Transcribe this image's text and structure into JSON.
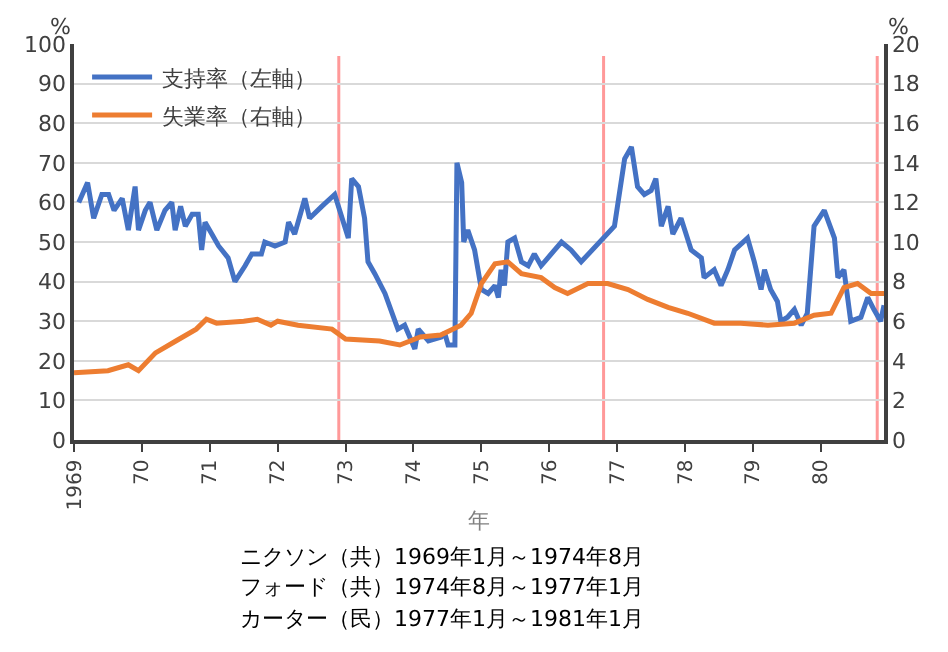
{
  "chart_data": {
    "type": "line",
    "xlabel": "年",
    "ylabel": "%",
    "y2label": "%",
    "x": [
      1969.07,
      1969.2,
      1969.29,
      1969.41,
      1969.51,
      1969.59,
      1969.71,
      1969.8,
      1969.9,
      1969.95,
      1970.05,
      1970.12,
      1970.22,
      1970.34,
      1970.44,
      1970.49,
      1970.57,
      1970.64,
      1970.74,
      1970.83,
      1970.88,
      1970.93,
      1971.03,
      1971.13,
      1971.27,
      1971.37,
      1971.52,
      1971.62,
      1971.76,
      1971.81,
      1971.96,
      1972.11,
      1972.16,
      1972.25,
      1972.4,
      1972.47,
      1972.65,
      1972.84,
      1973.04,
      1973.09,
      1973.19,
      1973.28,
      1973.33,
      1973.43,
      1973.58,
      1973.77,
      1973.87,
      1973.97,
      1974.02,
      1974.07,
      1974.22,
      1974.41,
      1974.46,
      1974.51,
      1974.61,
      1974.64,
      1974.71,
      1974.74,
      1974.8,
      1974.9,
      1975.0,
      1975.1,
      1975.2,
      1975.25,
      1975.29,
      1975.34,
      1975.39,
      1975.49,
      1975.59,
      1975.69,
      1975.78,
      1975.88,
      1975.98,
      1976.08,
      1976.18,
      1976.32,
      1976.47,
      1976.96,
      1977.11,
      1977.21,
      1977.3,
      1977.4,
      1977.5,
      1977.57,
      1977.65,
      1977.75,
      1977.82,
      1977.94,
      1978.09,
      1978.24,
      1978.28,
      1978.43,
      1978.53,
      1978.63,
      1978.73,
      1978.92,
      1979.02,
      1979.12,
      1979.17,
      1979.26,
      1979.36,
      1979.41,
      1979.51,
      1979.61,
      1979.71,
      1979.8,
      1979.9,
      1980.05,
      1980.2,
      1980.25,
      1980.34,
      1980.44,
      1980.59,
      1980.69,
      1980.78,
      1980.88,
      1980.93
    ],
    "series": [
      {
        "name": "支持率（左軸）",
        "color": "#4472c4",
        "values": [
          60,
          65,
          56,
          62,
          62,
          58,
          61,
          53,
          64,
          53,
          58,
          60,
          53,
          58,
          60,
          53,
          59,
          54,
          57,
          57,
          48,
          55,
          52,
          49,
          46,
          40,
          44,
          47,
          47,
          50,
          49,
          50,
          55,
          52,
          61,
          56,
          59,
          62,
          51,
          66,
          64,
          56,
          45,
          42,
          37,
          28,
          29,
          25,
          23,
          28,
          25,
          26,
          27,
          24,
          24,
          70,
          65,
          50,
          53,
          48,
          38,
          37,
          39,
          36,
          43,
          39,
          50,
          51,
          45,
          44,
          47,
          44,
          46,
          48,
          50,
          48,
          45,
          54,
          71,
          74,
          64,
          62,
          63,
          66,
          54,
          59,
          52,
          56,
          48,
          46,
          41,
          43,
          39,
          43,
          48,
          51,
          45,
          38,
          43,
          38,
          35,
          30,
          31,
          33,
          29,
          32,
          54,
          58,
          51,
          41,
          43,
          30,
          31,
          36,
          33,
          30,
          34
        ]
      },
      {
        "name": "失業率（右軸）",
        "color": "#ed7d31",
        "axis": "y2",
        "x": [
          1969.0,
          1969.5,
          1969.8,
          1969.95,
          1970.2,
          1970.5,
          1970.8,
          1970.95,
          1971.1,
          1971.5,
          1971.7,
          1971.9,
          1972.0,
          1972.3,
          1972.8,
          1973.0,
          1973.5,
          1973.8,
          1974.1,
          1974.4,
          1974.7,
          1974.85,
          1975.0,
          1975.2,
          1975.39,
          1975.59,
          1975.88,
          1976.08,
          1976.27,
          1976.57,
          1976.86,
          1977.16,
          1977.45,
          1977.75,
          1978.04,
          1978.43,
          1978.82,
          1979.22,
          1979.61,
          1979.9,
          1980.15,
          1980.34,
          1980.54,
          1980.74,
          1980.93
        ],
        "values": [
          3.4,
          3.5,
          3.8,
          3.5,
          4.4,
          5.0,
          5.6,
          6.1,
          5.9,
          6.0,
          6.1,
          5.8,
          6.0,
          5.8,
          5.6,
          5.1,
          5.0,
          4.8,
          5.2,
          5.3,
          5.8,
          6.4,
          7.9,
          8.9,
          9.0,
          8.4,
          8.2,
          7.7,
          7.4,
          7.9,
          7.9,
          7.6,
          7.1,
          6.7,
          6.4,
          5.9,
          5.9,
          5.8,
          5.9,
          6.3,
          6.4,
          7.7,
          7.9,
          7.4,
          7.4
        ]
      }
    ],
    "xlim": [
      1969,
      1980.93
    ],
    "xticks": [
      {
        "value": 1969,
        "label": "1969"
      },
      {
        "value": 1970,
        "label": "70"
      },
      {
        "value": 1971,
        "label": "71"
      },
      {
        "value": 1972,
        "label": "72"
      },
      {
        "value": 1973,
        "label": "73"
      },
      {
        "value": 1974,
        "label": "74"
      },
      {
        "value": 1975,
        "label": "75"
      },
      {
        "value": 1976,
        "label": "76"
      },
      {
        "value": 1977,
        "label": "77"
      },
      {
        "value": 1978,
        "label": "78"
      },
      {
        "value": 1979,
        "label": "79"
      },
      {
        "value": 1980,
        "label": "80"
      }
    ],
    "ylim": [
      0,
      100
    ],
    "yticks": [
      0,
      10,
      20,
      30,
      40,
      50,
      60,
      70,
      80,
      90,
      100
    ],
    "y2lim": [
      0,
      20
    ],
    "y2ticks": [
      0,
      2,
      4,
      6,
      8,
      10,
      12,
      14,
      16,
      18,
      20
    ],
    "ref_lines": [
      {
        "axis": "x",
        "value": 1972.9,
        "color": "#ff9999"
      },
      {
        "axis": "x",
        "value": 1976.8,
        "color": "#ff9999"
      },
      {
        "axis": "x",
        "value": 1980.83,
        "color": "#ff9999"
      }
    ],
    "grid": "y",
    "legend": "top left",
    "marker": "none",
    "line_style": "solid",
    "annotations": [
      "ニクソン（共）1969年1月～1974年8月",
      "フォード（共）1974年8月～1977年1月",
      "カーター（民）1977年1月～1981年1月"
    ]
  }
}
